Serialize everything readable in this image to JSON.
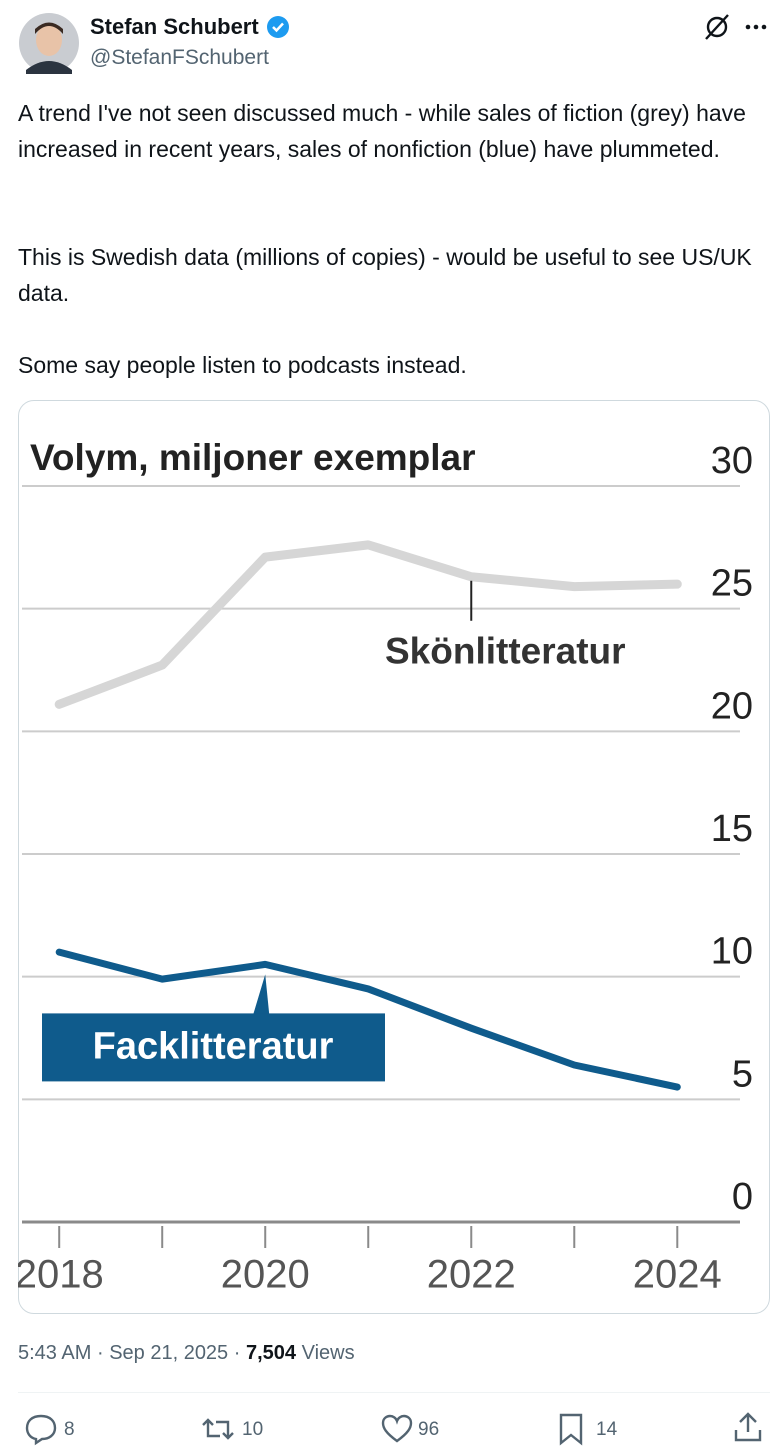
{
  "tweet": {
    "author": {
      "name": "Stefan Schubert",
      "handle": "@StefanFSchubert"
    },
    "paragraphs": [
      "A trend I've not seen discussed much - while sales of fiction (grey) have increased in recent years, sales of nonfiction (blue) have plummeted.",
      "This is Swedish data (millions of copies) - would be useful to see US/UK data.",
      "Some say people listen to podcasts instead."
    ],
    "meta": {
      "time": "5:43 AM",
      "separator": "·",
      "date": "Sep 21, 2025",
      "views": "7,504",
      "views_label": "Views"
    },
    "actions": {
      "replies": "8",
      "reposts": "10",
      "likes": "96",
      "bookmarks": "14"
    }
  },
  "chart_data": {
    "type": "line",
    "title": "Volym, miljoner exemplar",
    "x": [
      2018,
      2019,
      2020,
      2021,
      2022,
      2023,
      2024
    ],
    "series": [
      {
        "name": "Skönlitteratur",
        "color": "#d6d6d6",
        "values": [
          21.1,
          22.7,
          27.1,
          27.6,
          26.3,
          25.9,
          26.0
        ]
      },
      {
        "name": "Facklitteratur",
        "color": "#0f5b8c",
        "values": [
          11.0,
          9.9,
          10.5,
          9.5,
          7.9,
          6.4,
          5.5
        ]
      }
    ],
    "xlim": [
      2017.6,
      2024.9
    ],
    "xticks": [
      2018,
      {
        "value": 2019,
        "label": null
      },
      2020,
      {
        "value": 2021,
        "label": null
      },
      2022,
      {
        "value": 2023,
        "label": null
      },
      2024
    ],
    "ylim": [
      0,
      30
    ],
    "yticks": [
      0,
      5,
      10,
      15,
      20,
      25,
      30
    ],
    "grid": true
  }
}
